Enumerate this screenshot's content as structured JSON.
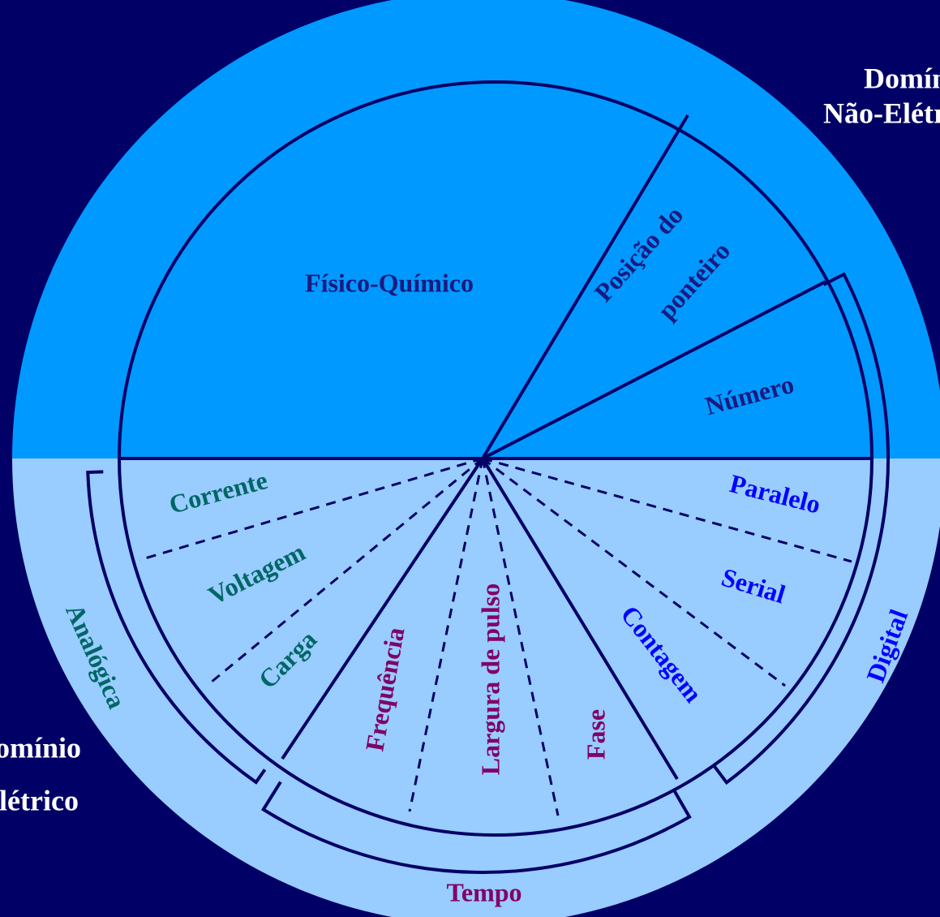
{
  "regions": {
    "non_electric": [
      "Domínio",
      "Não-Elétrico"
    ],
    "electric": [
      "Domínio",
      "Elétrico"
    ]
  },
  "sectors": {
    "physical": "Físico-Químico",
    "pointer": [
      "Posição do",
      "ponteiro"
    ],
    "number": "Número",
    "analog": [
      "Corrente",
      "Voltagem",
      "Carga"
    ],
    "time": [
      "Frequência",
      "Largura de pulso",
      "Fase"
    ],
    "digital": [
      "Contagem",
      "Serial",
      "Paralelo"
    ]
  },
  "groups": {
    "analog": "Analógica",
    "time": "Tempo",
    "digital": "Digital"
  }
}
